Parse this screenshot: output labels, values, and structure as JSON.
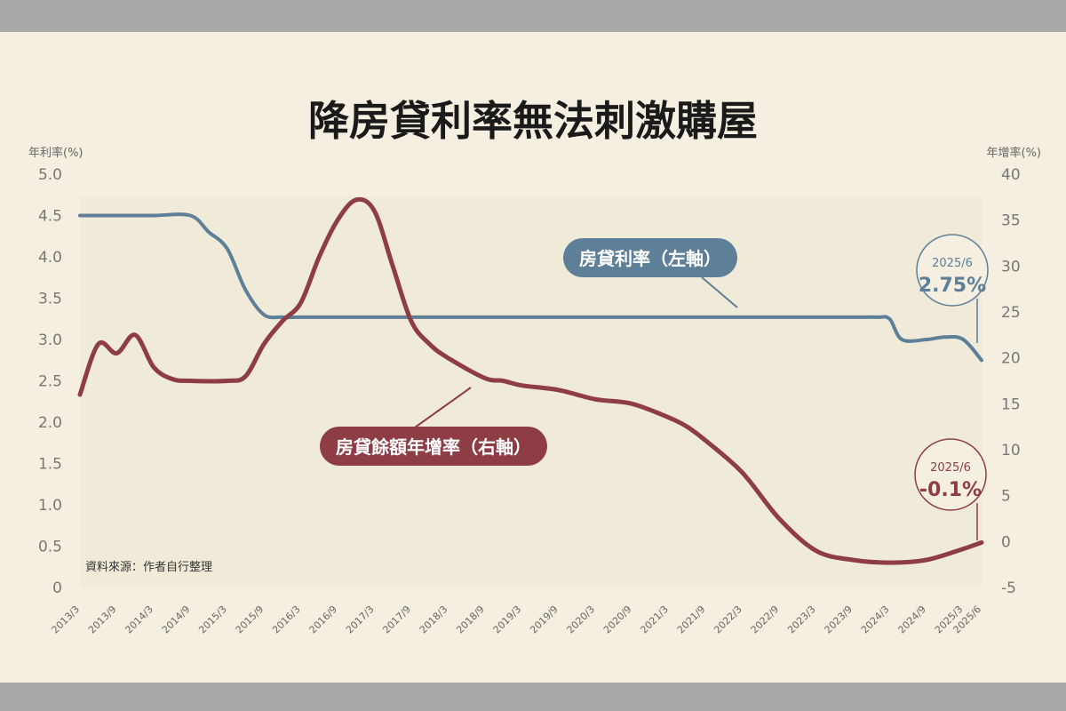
{
  "chart_data": {
    "type": "line",
    "title": "降房貸利率無法刺激購屋",
    "ylabel_left": "年利率(%)",
    "ylabel_right": "年增率(%)",
    "ylim_left": [
      0,
      5.0
    ],
    "ylim_right": [
      -5,
      40
    ],
    "yticks_left": [
      "5.0",
      "4.5",
      "4.0",
      "3.5",
      "3.0",
      "2.5",
      "2.0",
      "1.5",
      "1.0",
      "0.5",
      "0"
    ],
    "yticks_right": [
      "40",
      "35",
      "30",
      "25",
      "20",
      "15",
      "10",
      "5",
      "0",
      "-5"
    ],
    "x_ticks": [
      "2013/3",
      "2013/9",
      "2014/3",
      "2014/9",
      "2015/3",
      "2015/9",
      "2016/3",
      "2016/9",
      "2017/3",
      "2017/9",
      "2018/3",
      "2018/9",
      "2019/3",
      "2019/9",
      "2020/3",
      "2020/9",
      "2021/3",
      "2021/9",
      "2022/3",
      "2022/9",
      "2023/3",
      "2023/9",
      "2024/3",
      "2024/9",
      "2025/3",
      "2025/6"
    ],
    "series": [
      {
        "name": "房貸利率（左軸）",
        "axis": "left",
        "color": "#5d7f97",
        "x": [
          "2013/3",
          "2013/9",
          "2014/3",
          "2014/9",
          "2014/12",
          "2015/3",
          "2015/6",
          "2015/9",
          "2015/12",
          "2016/3",
          "2016/9",
          "2017/3",
          "2017/9",
          "2018/3",
          "2018/9",
          "2019/3",
          "2019/9",
          "2020/3",
          "2020/9",
          "2021/3",
          "2021/9",
          "2022/3",
          "2022/9",
          "2023/3",
          "2023/9",
          "2024/1",
          "2024/3",
          "2024/5",
          "2024/9",
          "2024/12",
          "2025/3",
          "2025/6"
        ],
        "values": [
          4.5,
          4.5,
          4.5,
          4.5,
          4.3,
          4.1,
          3.6,
          3.3,
          3.27,
          3.27,
          3.27,
          3.27,
          3.27,
          3.27,
          3.27,
          3.27,
          3.27,
          3.27,
          3.27,
          3.27,
          3.27,
          3.27,
          3.27,
          3.27,
          3.27,
          3.27,
          3.25,
          3.0,
          3.0,
          3.03,
          3.0,
          2.75
        ]
      },
      {
        "name": "房貸餘額年增率（右軸）",
        "axis": "right",
        "color": "#8e3d44",
        "x": [
          "2013/3",
          "2013/6",
          "2013/9",
          "2013/12",
          "2014/3",
          "2014/6",
          "2014/9",
          "2015/3",
          "2015/6",
          "2015/9",
          "2015/12",
          "2016/3",
          "2016/6",
          "2016/9",
          "2016/12",
          "2017/3",
          "2017/6",
          "2017/9",
          "2017/12",
          "2018/3",
          "2018/9",
          "2018/12",
          "2019/3",
          "2019/9",
          "2020/3",
          "2020/9",
          "2021/3",
          "2021/6",
          "2021/9",
          "2022/3",
          "2022/9",
          "2023/3",
          "2023/9",
          "2024/3",
          "2024/9",
          "2025/3",
          "2025/6"
        ],
        "values": [
          16.0,
          21.5,
          20.5,
          22.5,
          19.0,
          17.7,
          17.5,
          17.5,
          18.0,
          21.5,
          24.0,
          26.0,
          31.0,
          35.0,
          37.2,
          36.0,
          30.0,
          24.0,
          21.5,
          20.0,
          17.8,
          17.5,
          17.0,
          16.5,
          15.5,
          15.0,
          13.5,
          12.5,
          11.0,
          7.5,
          2.5,
          -1.0,
          -2.0,
          -2.3,
          -2.0,
          -0.8,
          -0.1
        ]
      }
    ],
    "series_labels": [
      "房貸利率（左軸）",
      "房貸餘額年增率（右軸）"
    ],
    "annotations": [
      {
        "date": "2025/6",
        "value": "2.75%"
      },
      {
        "date": "2025/6",
        "value": "-0.1%"
      }
    ],
    "source": "資料來源：作者自行整理",
    "grid": false
  }
}
